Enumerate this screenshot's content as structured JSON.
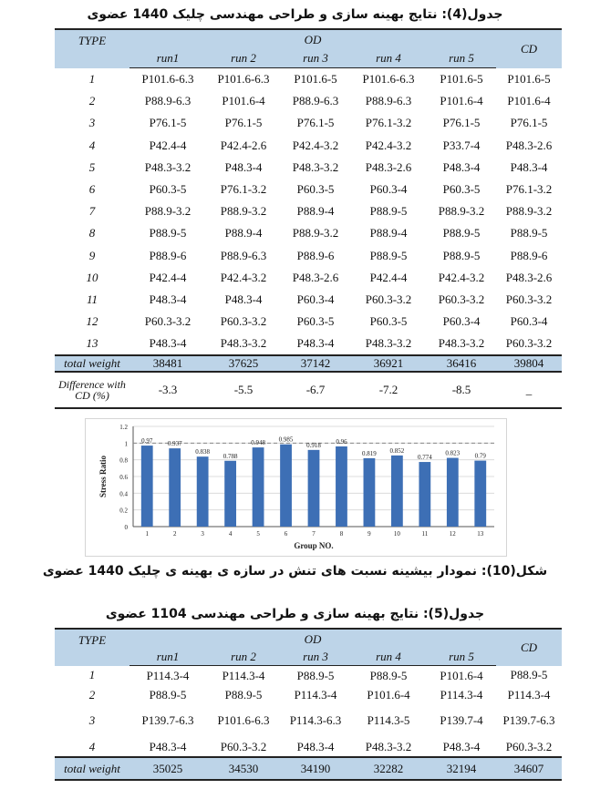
{
  "table4": {
    "caption": "جدول(4): نتایج بهینه سازی و طراحی مهندسی چلیک 1440 عضوی",
    "type_header": "TYPE",
    "od_header": "OD",
    "cd_header": "CD",
    "runs": [
      "run1",
      "run 2",
      "run 3",
      "run 4",
      "run 5"
    ],
    "rows": [
      {
        "type": "1",
        "values": [
          "P101.6-6.3",
          "P101.6-6.3",
          "P101.6-5",
          "P101.6-6.3",
          "P101.6-5",
          "P101.6-5"
        ]
      },
      {
        "type": "2",
        "values": [
          "P88.9-6.3",
          "P101.6-4",
          "P88.9-6.3",
          "P88.9-6.3",
          "P101.6-4",
          "P101.6-4"
        ]
      },
      {
        "type": "3",
        "values": [
          "P76.1-5",
          "P76.1-5",
          "P76.1-5",
          "P76.1-3.2",
          "P76.1-5",
          "P76.1-5"
        ]
      },
      {
        "type": "4",
        "values": [
          "P42.4-4",
          "P42.4-2.6",
          "P42.4-3.2",
          "P42.4-3.2",
          "P33.7-4",
          "P48.3-2.6"
        ]
      },
      {
        "type": "5",
        "values": [
          "P48.3-3.2",
          "P48.3-4",
          "P48.3-3.2",
          "P48.3-2.6",
          "P48.3-4",
          "P48.3-4"
        ]
      },
      {
        "type": "6",
        "values": [
          "P60.3-5",
          "P76.1-3.2",
          "P60.3-5",
          "P60.3-4",
          "P60.3-5",
          "P76.1-3.2"
        ]
      },
      {
        "type": "7",
        "values": [
          "P88.9-3.2",
          "P88.9-3.2",
          "P88.9-4",
          "P88.9-5",
          "P88.9-3.2",
          "P88.9-3.2"
        ]
      },
      {
        "type": "8",
        "values": [
          "P88.9-5",
          "P88.9-4",
          "P88.9-3.2",
          "P88.9-4",
          "P88.9-5",
          "P88.9-5"
        ]
      },
      {
        "type": "9",
        "values": [
          "P88.9-6",
          "P88.9-6.3",
          "P88.9-6",
          "P88.9-5",
          "P88.9-5",
          "P88.9-6"
        ]
      },
      {
        "type": "10",
        "values": [
          "P42.4-4",
          "P42.4-3.2",
          "P48.3-2.6",
          "P42.4-4",
          "P42.4-3.2",
          "P48.3-2.6"
        ]
      },
      {
        "type": "11",
        "values": [
          "P48.3-4",
          "P48.3-4",
          "P60.3-4",
          "P60.3-3.2",
          "P60.3-3.2",
          "P60.3-3.2"
        ]
      },
      {
        "type": "12",
        "values": [
          "P60.3-3.2",
          "P60.3-3.2",
          "P60.3-5",
          "P60.3-5",
          "P60.3-4",
          "P60.3-4"
        ]
      },
      {
        "type": "13",
        "values": [
          "P48.3-4",
          "P48.3-3.2",
          "P48.3-4",
          "P48.3-3.2",
          "P48.3-3.2",
          "P60.3-3.2"
        ]
      }
    ],
    "total_label": "total weight",
    "totals": [
      "38481",
      "37625",
      "37142",
      "36921",
      "36416",
      "39804"
    ],
    "diff_label": "Difference with CD (%)",
    "diffs": [
      "-3.3",
      "-5.5",
      "-6.7",
      "-7.2",
      "-8.5",
      "_"
    ]
  },
  "figure": {
    "caption": "شکل(10): نمودار بیشینه نسبت های تنش در سازه ی بهینه ی چلیک 1440 عضوی"
  },
  "chart_data": {
    "type": "bar",
    "title": "",
    "xlabel": "Group NO.",
    "ylabel": "Stress Ratio",
    "ylim": [
      0,
      1.2
    ],
    "yticks": [
      "0",
      "0.2",
      "0.4",
      "0.6",
      "0.8",
      "1",
      "1.2"
    ],
    "categories": [
      "1",
      "2",
      "3",
      "4",
      "5",
      "6",
      "7",
      "8",
      "9",
      "10",
      "11",
      "12",
      "13"
    ],
    "values": [
      0.97,
      0.937,
      0.838,
      0.788,
      0.948,
      0.985,
      0.918,
      0.96,
      0.819,
      0.852,
      0.774,
      0.823,
      0.79
    ],
    "data_labels": [
      "0.97",
      "0.937",
      "0.838",
      "0.788",
      "0.948",
      "0.985",
      "0.918",
      "0.96",
      "0.819",
      "0.852",
      "0.774",
      "0.823",
      "0.79"
    ],
    "grid": true,
    "reference_line": 1,
    "bar_color": "#3d6fb5"
  },
  "table5": {
    "caption": "جدول(5): نتایج بهینه سازی و طراحی مهندسی 1104 عضوی",
    "type_header": "TYPE",
    "od_header": "OD",
    "cd_header": "CD",
    "runs": [
      "run1",
      "run 2",
      "run 3",
      "run 4",
      "run 5"
    ],
    "rows": [
      {
        "type": "1",
        "values": [
          "P114.3-4",
          "P114.3-4",
          "P88.9-5",
          "P88.9-5",
          "P101.6-4",
          "P88.9-5"
        ]
      },
      {
        "type": "2",
        "values": [
          "P88.9-5",
          "P88.9-5",
          "P114.3-4",
          "P101.6-4",
          "P114.3-4",
          "P114.3-4"
        ]
      },
      {
        "type": "3",
        "values": [
          "P139.7-6.3",
          "P101.6-6.3",
          "P114.3-6.3",
          "P114.3-5",
          "P139.7-4",
          "P139.7-6.3"
        ]
      },
      {
        "type": "4",
        "values": [
          "P48.3-4",
          "P60.3-3.2",
          "P48.3-4",
          "P48.3-3.2",
          "P48.3-4",
          "P60.3-3.2"
        ]
      }
    ],
    "total_label": "total weight",
    "totals": [
      "35025",
      "34530",
      "34190",
      "32282",
      "32194",
      "34607"
    ]
  }
}
